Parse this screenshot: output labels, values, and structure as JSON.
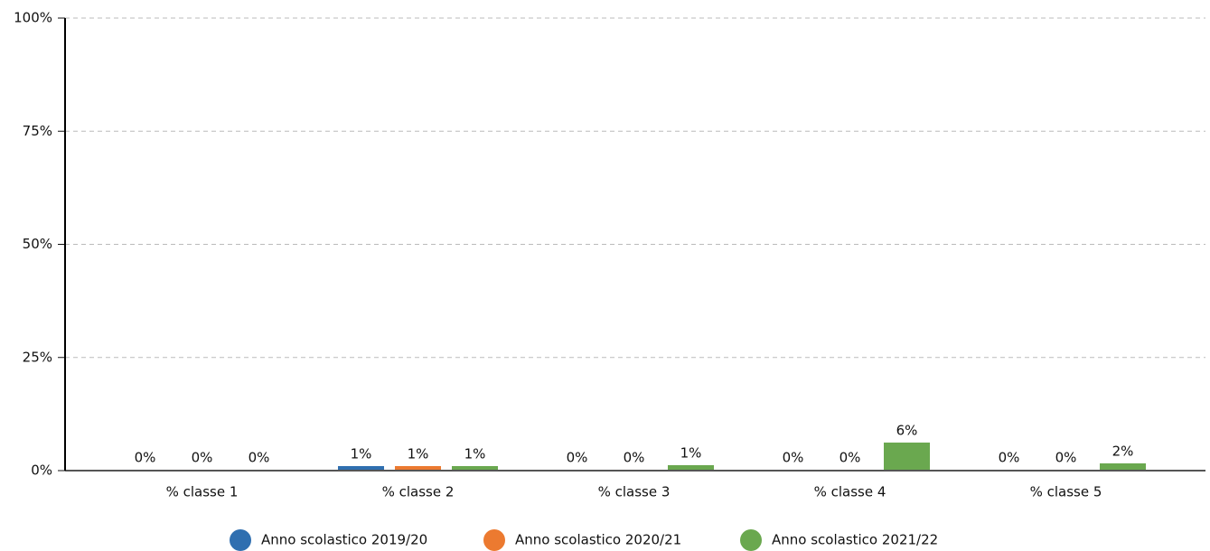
{
  "chart_data": {
    "type": "bar",
    "categories": [
      "% classe 1",
      "% classe 2",
      "% classe 3",
      "% classe 4",
      "% classe 5"
    ],
    "series": [
      {
        "name": "Anno scolastico 2019/20",
        "color": "#2f6fb0",
        "values": [
          0.2,
          1.0,
          0.2,
          0.2,
          0.2
        ],
        "value_labels": [
          "0%",
          "1%",
          "0%",
          "0%",
          "0%"
        ]
      },
      {
        "name": "Anno scolastico 2020/21",
        "color": "#ec7a30",
        "values": [
          0.2,
          1.0,
          0.2,
          0.2,
          0.2
        ],
        "value_labels": [
          "0%",
          "1%",
          "0%",
          "0%",
          "0%"
        ]
      },
      {
        "name": "Anno scolastico 2021/22",
        "color": "#6aa84f",
        "values": [
          0.2,
          1.0,
          1.2,
          6.2,
          1.6
        ],
        "value_labels": [
          "0%",
          "1%",
          "1%",
          "6%",
          "2%"
        ]
      }
    ],
    "ylim": [
      0,
      100
    ],
    "yticks": [
      {
        "value": 0,
        "label": "0%"
      },
      {
        "value": 25,
        "label": "25%"
      },
      {
        "value": 50,
        "label": "50%"
      },
      {
        "value": 75,
        "label": "75%"
      },
      {
        "value": 100,
        "label": "100%"
      }
    ],
    "grid": true,
    "legend": "bottom"
  }
}
